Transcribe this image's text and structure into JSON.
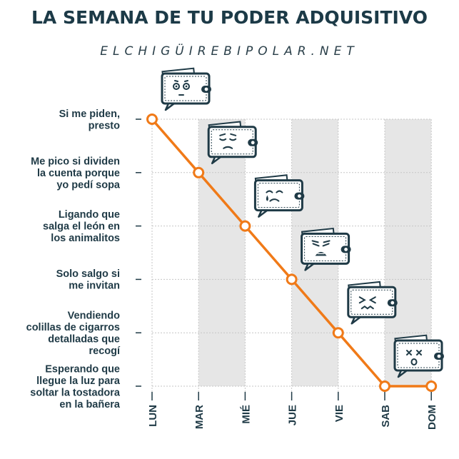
{
  "header": {
    "title": "LA SEMANA DE TU PODER ADQUISITIVO",
    "subtitle": "ELCHIGÜIREBIPOLAR.NET"
  },
  "colors": {
    "navy": "#1f3a46",
    "orange": "#f07a18",
    "stripe": "#e6e6e6",
    "grid": "#c6c6c6"
  },
  "chart_data": {
    "type": "line",
    "categories": [
      "LUN",
      "MAR",
      "MIÉ",
      "JUE",
      "VIE",
      "SAB",
      "DOM"
    ],
    "y_levels": [
      "Si me piden,\npresto",
      "Me pico si dividen\nla cuenta porque\nyo pedí sopa",
      "Ligando que\nsalga el león en\nlos animalitos",
      "Solo salgo si\nme invitan",
      "Vendiendo\ncolillas de cigarros\ndetalladas que\nrecogí",
      "Esperando que\nllegue la luz para\nsoltar la tostadora\nen la bañera"
    ],
    "series": [
      {
        "values": [
          0,
          1,
          2,
          3,
          4,
          5,
          5
        ]
      }
    ],
    "wallet_moods": [
      "neutral",
      "worried",
      "crying",
      "anguished",
      "confounded",
      "dizzy"
    ],
    "grid": true
  }
}
